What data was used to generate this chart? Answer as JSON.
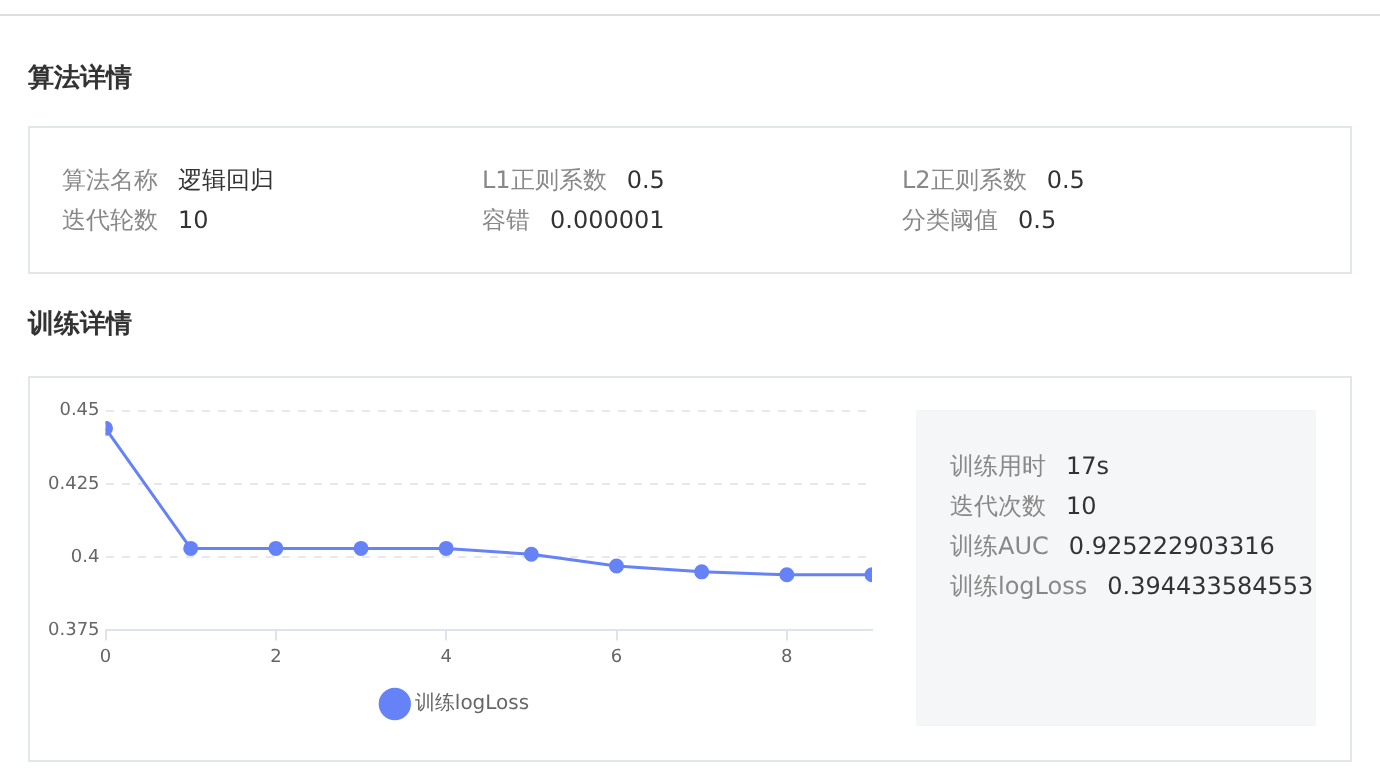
{
  "chart_data": [
    {
      "type": "other",
      "title": "算法详情",
      "annotations": [
        "算法名称",
        "逻辑回归",
        "L1正则系数",
        "0.5",
        "L2正则系数",
        "0.5",
        "迭代轮数",
        "10",
        "容错",
        "0.000001",
        "分类阈值",
        "0.5"
      ]
    },
    {
      "type": "line",
      "title": "训练详情",
      "x": [
        0,
        1,
        2,
        3,
        4,
        5,
        6,
        7,
        8,
        9
      ],
      "series": [
        {
          "name": "训练logLoss",
          "color": "#6582f7",
          "values": [
            0.444,
            0.403,
            0.403,
            0.403,
            0.403,
            0.401,
            0.397,
            0.395,
            0.394,
            0.394
          ]
        }
      ],
      "xlim": [
        0,
        9
      ],
      "xticks": [
        0,
        2,
        4,
        6,
        8
      ],
      "ylim": [
        0.375,
        0.45
      ],
      "yticks": [
        0.375,
        0.4,
        0.425,
        0.45
      ],
      "grid": "y",
      "legend": "bottom",
      "marker": "circle",
      "line_style": "solid"
    },
    {
      "type": "other",
      "annotations": [
        "训练用时",
        "17s",
        "迭代次数",
        "10",
        "训练AUC",
        "0.925222903316",
        "训练logLoss",
        "0.394433584553"
      ]
    }
  ]
}
